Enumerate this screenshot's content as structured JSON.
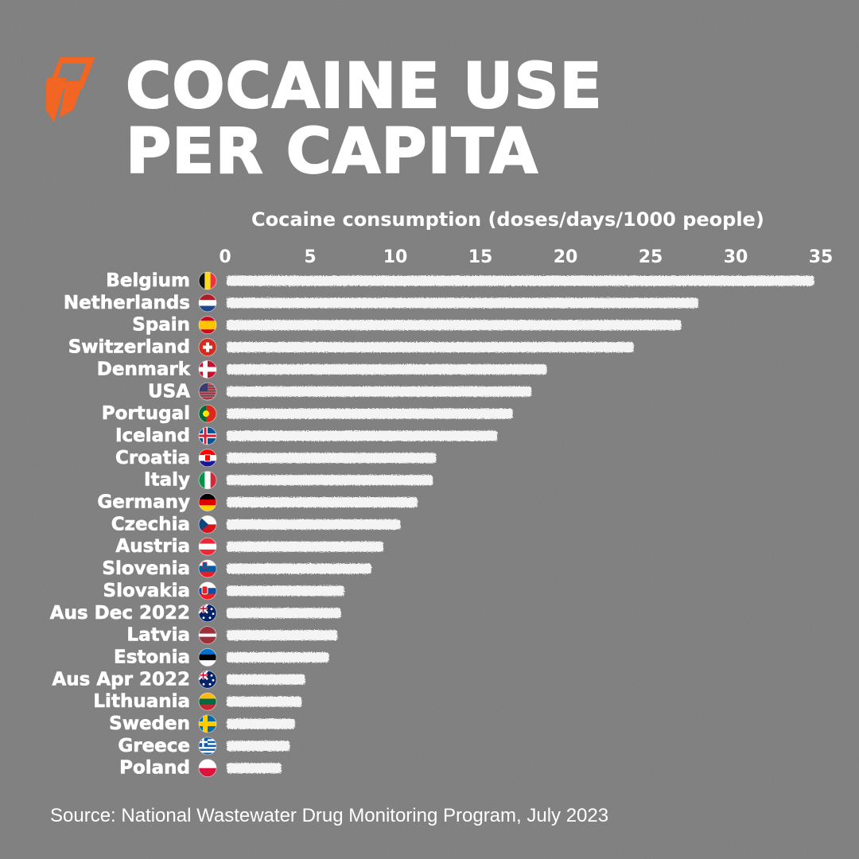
{
  "title_lines": [
    "COCAINE USE",
    "PER CAPITA"
  ],
  "logo": {
    "icon": "sbs-logo-icon",
    "color": "#f26522"
  },
  "source": "Source: National Wastewater Drug Monitoring Program, July 2023",
  "colors": {
    "background": "#7b7b7b",
    "bar": "#f4f4f4",
    "text": "#ffffff"
  },
  "chart_data": {
    "type": "bar",
    "orientation": "horizontal",
    "xlabel": "Cocaine consumption (doses/days/1000 people)",
    "xlim": [
      0,
      35
    ],
    "xticks": [
      0,
      5,
      10,
      15,
      20,
      25,
      30,
      35
    ],
    "x_axis_position": "top",
    "grid": false,
    "categories": [
      "Belgium",
      "Netherlands",
      "Spain",
      "Switzerland",
      "Denmark",
      "USA",
      "Portugal",
      "Iceland",
      "Croatia",
      "Italy",
      "Germany",
      "Czechia",
      "Austria",
      "Slovenia",
      "Slovakia",
      "Aus Dec 2022",
      "Latvia",
      "Estonia",
      "Aus Apr 2022",
      "Lithuania",
      "Sweden",
      "Greece",
      "Poland"
    ],
    "flags": [
      "belgium-flag-icon",
      "netherlands-flag-icon",
      "spain-flag-icon",
      "switzerland-flag-icon",
      "denmark-flag-icon",
      "usa-flag-icon",
      "portugal-flag-icon",
      "iceland-flag-icon",
      "croatia-flag-icon",
      "italy-flag-icon",
      "germany-flag-icon",
      "czechia-flag-icon",
      "austria-flag-icon",
      "slovenia-flag-icon",
      "slovakia-flag-icon",
      "australia-flag-icon",
      "latvia-flag-icon",
      "estonia-flag-icon",
      "australia-flag-icon",
      "lithuania-flag-icon",
      "sweden-flag-icon",
      "greece-flag-icon",
      "poland-flag-icon"
    ],
    "values": [
      34.6,
      27.8,
      26.8,
      24.0,
      18.9,
      18.0,
      16.9,
      16.0,
      12.4,
      12.2,
      11.3,
      10.3,
      9.3,
      8.6,
      7.0,
      6.8,
      6.6,
      6.1,
      4.7,
      4.5,
      4.1,
      3.8,
      3.3
    ]
  }
}
